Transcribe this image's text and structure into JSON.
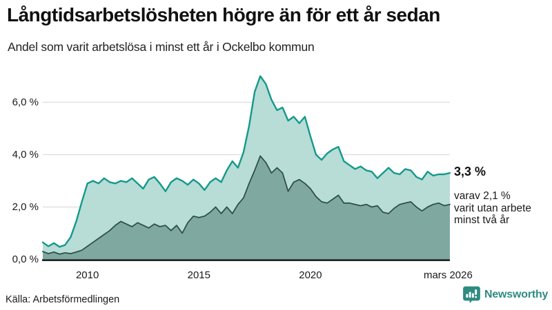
{
  "chart_data": {
    "type": "area",
    "title": "Långtidsarbetslösheten högre än för ett år sedan",
    "subtitle": "Andel som varit arbetslösa i minst ett år i Ockelbo kommun",
    "x_unit": "year (monthly series, shown as decimal years)",
    "x": [
      2008,
      2008.25,
      2008.5,
      2008.75,
      2009,
      2009.25,
      2009.5,
      2009.75,
      2010,
      2010.25,
      2010.5,
      2010.75,
      2011,
      2011.25,
      2011.5,
      2011.75,
      2012,
      2012.25,
      2012.5,
      2012.75,
      2013,
      2013.25,
      2013.5,
      2013.75,
      2014,
      2014.25,
      2014.5,
      2014.75,
      2015,
      2015.25,
      2015.5,
      2015.75,
      2016,
      2016.25,
      2016.5,
      2016.75,
      2017,
      2017.25,
      2017.5,
      2017.75,
      2018,
      2018.25,
      2018.5,
      2018.75,
      2019,
      2019.25,
      2019.5,
      2019.75,
      2020,
      2020.25,
      2020.5,
      2020.75,
      2021,
      2021.25,
      2021.5,
      2021.75,
      2022,
      2022.25,
      2022.5,
      2022.75,
      2023,
      2023.25,
      2023.5,
      2023.75,
      2024,
      2024.25,
      2024.5,
      2024.75,
      2025,
      2025.25,
      2025.5,
      2025.75,
      2026,
      2026.25
    ],
    "series": [
      {
        "name": "Andel arbetslösa minst ett år (totalt)",
        "color": "#12998b",
        "fill": "#b8dcd6",
        "latest_value_pct": 3.3,
        "values": [
          0.65,
          0.5,
          0.62,
          0.48,
          0.55,
          0.85,
          1.45,
          2.2,
          2.9,
          3.0,
          2.9,
          3.1,
          2.95,
          2.9,
          3.0,
          2.95,
          3.1,
          2.9,
          2.7,
          3.05,
          3.15,
          2.9,
          2.6,
          2.95,
          3.1,
          3.0,
          2.85,
          3.05,
          2.9,
          2.65,
          2.95,
          3.1,
          2.95,
          3.4,
          3.75,
          3.5,
          4.1,
          5.1,
          6.4,
          7.0,
          6.7,
          6.1,
          5.7,
          5.8,
          5.3,
          5.45,
          5.2,
          5.45,
          4.7,
          4.0,
          3.8,
          4.05,
          4.2,
          4.3,
          3.75,
          3.6,
          3.45,
          3.55,
          3.4,
          3.35,
          3.1,
          3.3,
          3.5,
          3.3,
          3.25,
          3.45,
          3.4,
          3.15,
          3.05,
          3.35,
          3.2,
          3.25,
          3.25,
          3.3
        ]
      },
      {
        "name": "Varav utan arbete minst två år",
        "color": "#2e4f49",
        "fill": "#7fa8a1",
        "latest_value_pct": 2.1,
        "values": [
          0.3,
          0.22,
          0.28,
          0.2,
          0.25,
          0.22,
          0.28,
          0.35,
          0.5,
          0.65,
          0.8,
          0.95,
          1.1,
          1.3,
          1.45,
          1.35,
          1.25,
          1.4,
          1.3,
          1.2,
          1.35,
          1.25,
          1.3,
          1.1,
          1.3,
          1.0,
          1.4,
          1.65,
          1.6,
          1.65,
          1.8,
          2.0,
          1.75,
          2.0,
          1.75,
          2.1,
          2.35,
          2.9,
          3.4,
          3.95,
          3.7,
          3.3,
          3.5,
          3.3,
          2.6,
          2.95,
          3.05,
          2.9,
          2.7,
          2.4,
          2.2,
          2.15,
          2.3,
          2.45,
          2.15,
          2.15,
          2.1,
          2.05,
          2.1,
          2.0,
          2.05,
          1.8,
          1.75,
          1.95,
          2.1,
          2.15,
          2.2,
          2.0,
          1.85,
          2.0,
          2.1,
          2.15,
          2.05,
          2.1
        ]
      }
    ],
    "ylim": [
      0,
      7.3
    ],
    "grid": true,
    "legend_position": "none (series described by annotation)",
    "y_ticks": [
      {
        "value": 0,
        "label": "0,0 %"
      },
      {
        "value": 2,
        "label": "2,0 %"
      },
      {
        "value": 4,
        "label": "4,0 %"
      },
      {
        "value": 6,
        "label": "6,0 %"
      }
    ],
    "x_ticks": [
      {
        "value": 2010,
        "label": "2010"
      },
      {
        "value": 2015,
        "label": "2015"
      },
      {
        "value": 2020,
        "label": "2020"
      },
      {
        "value": 2026.17,
        "label": "mars 2026"
      }
    ],
    "annotation": {
      "total": "3,3 %",
      "lines": [
        "varav 2,1 %",
        "varit utan arbete",
        "minst två år"
      ]
    },
    "colors": {
      "grid": "#dcdce0",
      "baseline": "#1f1f1f",
      "text": "#1a1a1a"
    }
  },
  "footer": {
    "source": "Källa: Arbetsförmedlingen",
    "brand": "Newsworthy",
    "brand_color": "#2e8b80"
  }
}
